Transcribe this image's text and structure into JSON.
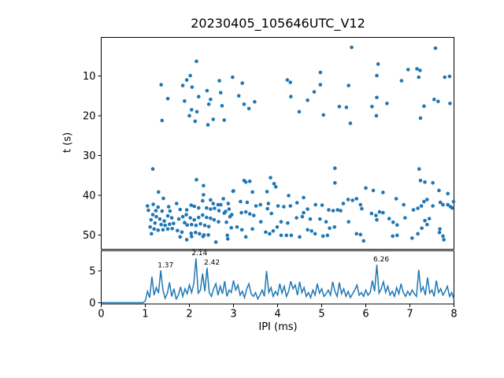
{
  "figure": {
    "title": "20230405_105646UTC_V12",
    "background_color": "#ffffff",
    "accent_color": "#1f77b4",
    "text_color": "#000000"
  },
  "chart_data": [
    {
      "type": "scatter",
      "title": "20230405_105646UTC_V12",
      "xlabel": "",
      "ylabel": "t (s)",
      "xlim": [
        0,
        8
      ],
      "ylim": [
        53.6,
        0.25
      ],
      "y_inverted": true,
      "yticks": [
        10,
        20,
        30,
        40,
        50
      ],
      "grid": false,
      "marker_color": "#1f77b4",
      "points": [
        [
          2.16,
          6.3
        ],
        [
          5.68,
          2.8
        ],
        [
          7.58,
          3.0
        ],
        [
          2.02,
          9.9
        ],
        [
          1.94,
          11.0
        ],
        [
          1.85,
          12.4
        ],
        [
          2.06,
          12.8
        ],
        [
          1.36,
          12.2
        ],
        [
          2.68,
          11.2
        ],
        [
          2.98,
          10.3
        ],
        [
          3.2,
          11.8
        ],
        [
          2.4,
          13.7
        ],
        [
          2.71,
          14.2
        ],
        [
          2.21,
          15.2
        ],
        [
          1.89,
          16.3
        ],
        [
          1.51,
          15.7
        ],
        [
          2.48,
          15.9
        ],
        [
          2.44,
          17.1
        ],
        [
          2.74,
          17.5
        ],
        [
          3.12,
          15.0
        ],
        [
          3.24,
          17.1
        ],
        [
          3.35,
          18.2
        ],
        [
          3.48,
          16.5
        ],
        [
          2.05,
          18.5
        ],
        [
          2.17,
          19.0
        ],
        [
          2.0,
          20.0
        ],
        [
          2.13,
          21.4
        ],
        [
          2.42,
          22.3
        ],
        [
          2.54,
          20.9
        ],
        [
          2.79,
          21.1
        ],
        [
          1.38,
          21.2
        ],
        [
          6.28,
          7.0
        ],
        [
          4.97,
          9.1
        ],
        [
          6.96,
          8.4
        ],
        [
          7.16,
          8.2
        ],
        [
          7.23,
          8.6
        ],
        [
          7.2,
          10.3
        ],
        [
          6.25,
          9.9
        ],
        [
          4.22,
          11.0
        ],
        [
          4.29,
          11.6
        ],
        [
          7.79,
          10.3
        ],
        [
          7.9,
          10.1
        ],
        [
          4.97,
          12.2
        ],
        [
          6.81,
          11.2
        ],
        [
          5.61,
          12.4
        ],
        [
          4.83,
          14.0
        ],
        [
          4.3,
          15.2
        ],
        [
          4.68,
          16.1
        ],
        [
          6.25,
          15.4
        ],
        [
          6.48,
          16.9
        ],
        [
          6.14,
          17.7
        ],
        [
          4.49,
          19.0
        ],
        [
          5.4,
          17.7
        ],
        [
          5.56,
          17.9
        ],
        [
          5.04,
          19.8
        ],
        [
          6.24,
          20.0
        ],
        [
          5.65,
          21.9
        ],
        [
          7.24,
          20.6
        ],
        [
          7.32,
          17.6
        ],
        [
          7.55,
          15.9
        ],
        [
          7.64,
          16.4
        ],
        [
          7.91,
          16.9
        ],
        [
          1.17,
          33.4
        ],
        [
          5.3,
          33.2
        ],
        [
          7.21,
          33.4
        ],
        [
          5.3,
          36.9
        ],
        [
          2.16,
          36.1
        ],
        [
          2.32,
          37.6
        ],
        [
          3.24,
          36.3
        ],
        [
          3.37,
          36.5
        ],
        [
          3.84,
          35.6
        ],
        [
          3.92,
          37.1
        ],
        [
          3.28,
          36.7
        ],
        [
          1.05,
          42.7
        ],
        [
          1.07,
          43.8
        ],
        [
          1.11,
          48.0
        ],
        [
          1.13,
          46.2
        ],
        [
          1.14,
          49.7
        ],
        [
          1.17,
          44.9
        ],
        [
          1.18,
          42.3
        ],
        [
          1.2,
          48.5
        ],
        [
          1.22,
          47.0
        ],
        [
          1.24,
          43.9
        ],
        [
          1.25,
          45.4
        ],
        [
          1.29,
          48.8
        ],
        [
          1.29,
          43.0
        ],
        [
          1.3,
          39.2
        ],
        [
          1.33,
          46.0
        ],
        [
          1.36,
          47.4
        ],
        [
          1.38,
          44.0
        ],
        [
          1.4,
          48.7
        ],
        [
          1.41,
          40.8
        ],
        [
          1.43,
          46.5
        ],
        [
          1.45,
          47.6
        ],
        [
          1.51,
          45.2
        ],
        [
          1.51,
          48.5
        ],
        [
          1.53,
          42.9
        ],
        [
          1.55,
          47.3
        ],
        [
          1.56,
          44.0
        ],
        [
          1.6,
          45.7
        ],
        [
          1.61,
          48.4
        ],
        [
          1.64,
          47.1
        ],
        [
          1.71,
          42.1
        ],
        [
          1.73,
          48.9
        ],
        [
          1.76,
          46.0
        ],
        [
          1.79,
          50.5
        ],
        [
          1.79,
          43.6
        ],
        [
          1.83,
          49.3
        ],
        [
          1.85,
          45.4
        ],
        [
          1.89,
          46.9
        ],
        [
          1.93,
          44.9
        ],
        [
          1.94,
          51.2
        ],
        [
          1.94,
          43.7
        ],
        [
          1.95,
          47.5
        ],
        [
          2.02,
          45.7
        ],
        [
          2.04,
          42.5
        ],
        [
          2.04,
          49.6
        ],
        [
          2.05,
          50.4
        ],
        [
          2.05,
          47.4
        ],
        [
          2.11,
          42.8
        ],
        [
          2.11,
          46.2
        ],
        [
          2.14,
          49.4
        ],
        [
          2.15,
          47.6
        ],
        [
          2.21,
          43.2
        ],
        [
          2.21,
          45.6
        ],
        [
          2.23,
          49.7
        ],
        [
          2.25,
          47.2
        ],
        [
          2.3,
          41.4
        ],
        [
          2.3,
          45.0
        ],
        [
          2.31,
          50.4
        ],
        [
          2.32,
          39.9
        ],
        [
          2.33,
          50.0
        ],
        [
          2.35,
          47.6
        ],
        [
          2.39,
          43.2
        ],
        [
          2.39,
          45.6
        ],
        [
          2.43,
          50.0
        ],
        [
          2.44,
          47.9
        ],
        [
          2.48,
          41.2
        ],
        [
          2.48,
          43.5
        ],
        [
          2.48,
          45.8
        ],
        [
          2.54,
          42.1
        ],
        [
          2.56,
          46.2
        ],
        [
          2.57,
          43.3
        ],
        [
          2.6,
          51.8
        ],
        [
          2.65,
          42.4
        ],
        [
          2.66,
          46.7
        ],
        [
          2.67,
          43.9
        ],
        [
          2.87,
          51.0
        ],
        [
          2.79,
          44.5
        ],
        [
          2.84,
          46.8
        ],
        [
          2.9,
          43.5
        ],
        [
          2.95,
          48.2
        ],
        [
          2.99,
          39.0
        ],
        [
          2.96,
          44.9
        ],
        [
          3.0,
          38.9
        ],
        [
          3.43,
          39.2
        ],
        [
          3.76,
          39.1
        ],
        [
          3.96,
          37.9
        ],
        [
          4.25,
          40.1
        ],
        [
          4.59,
          40.6
        ],
        [
          2.77,
          40.9
        ],
        [
          2.88,
          42.1
        ],
        [
          2.71,
          42.4
        ],
        [
          3.16,
          41.6
        ],
        [
          3.31,
          41.8
        ],
        [
          3.51,
          42.7
        ],
        [
          3.61,
          42.4
        ],
        [
          3.79,
          42.1
        ],
        [
          3.77,
          43.4
        ],
        [
          4.01,
          42.7
        ],
        [
          4.14,
          42.9
        ],
        [
          4.29,
          42.7
        ],
        [
          4.44,
          41.9
        ],
        [
          4.68,
          43.5
        ],
        [
          4.86,
          42.4
        ],
        [
          5.01,
          42.5
        ],
        [
          5.16,
          43.7
        ],
        [
          5.26,
          43.9
        ],
        [
          5.36,
          43.7
        ],
        [
          2.82,
          44.1
        ],
        [
          2.92,
          45.4
        ],
        [
          3.18,
          44.4
        ],
        [
          3.28,
          44.2
        ],
        [
          3.37,
          44.7
        ],
        [
          3.46,
          45.1
        ],
        [
          3.62,
          46.7
        ],
        [
          3.86,
          44.6
        ],
        [
          4.08,
          46.7
        ],
        [
          4.23,
          47.0
        ],
        [
          4.43,
          45.7
        ],
        [
          4.56,
          45.4
        ],
        [
          4.59,
          44.4
        ],
        [
          4.74,
          46.0
        ],
        [
          4.96,
          46.0
        ],
        [
          5.1,
          46.7
        ],
        [
          5.18,
          48.3
        ],
        [
          5.29,
          48.0
        ],
        [
          3.08,
          48.0
        ],
        [
          3.19,
          48.7
        ],
        [
          3.43,
          48.5
        ],
        [
          3.73,
          49.3
        ],
        [
          3.82,
          49.7
        ],
        [
          3.9,
          49.0
        ],
        [
          3.99,
          48.0
        ],
        [
          4.08,
          50.1
        ],
        [
          4.2,
          50.1
        ],
        [
          4.31,
          50.1
        ],
        [
          4.5,
          50.5
        ],
        [
          4.68,
          48.7
        ],
        [
          4.77,
          49.0
        ],
        [
          4.85,
          49.7
        ],
        [
          5.03,
          50.3
        ],
        [
          5.13,
          50.1
        ],
        [
          2.86,
          50.1
        ],
        [
          3.28,
          50.5
        ],
        [
          6.0,
          38.2
        ],
        [
          6.17,
          38.8
        ],
        [
          6.39,
          39.3
        ],
        [
          7.66,
          38.8
        ],
        [
          7.86,
          39.6
        ],
        [
          5.49,
          42.1
        ],
        [
          5.6,
          41.1
        ],
        [
          5.7,
          41.3
        ],
        [
          5.79,
          40.9
        ],
        [
          5.88,
          42.4
        ],
        [
          5.91,
          43.4
        ],
        [
          5.43,
          43.9
        ],
        [
          6.69,
          40.9
        ],
        [
          6.86,
          42.4
        ],
        [
          7.08,
          43.7
        ],
        [
          7.18,
          43.3
        ],
        [
          7.26,
          42.7
        ],
        [
          7.32,
          41.6
        ],
        [
          7.39,
          41.1
        ],
        [
          7.52,
          42.7
        ],
        [
          7.69,
          41.8
        ],
        [
          7.75,
          42.4
        ],
        [
          7.86,
          42.4
        ],
        [
          7.92,
          42.9
        ],
        [
          6.13,
          44.6
        ],
        [
          6.23,
          45.1
        ],
        [
          6.31,
          44.2
        ],
        [
          6.39,
          44.4
        ],
        [
          6.25,
          46.2
        ],
        [
          6.53,
          45.9
        ],
        [
          6.62,
          46.8
        ],
        [
          6.71,
          47.5
        ],
        [
          6.89,
          45.7
        ],
        [
          7.34,
          46.4
        ],
        [
          7.44,
          45.9
        ],
        [
          7.39,
          47.4
        ],
        [
          7.27,
          48.3
        ],
        [
          7.68,
          48.5
        ],
        [
          5.79,
          49.7
        ],
        [
          5.88,
          49.9
        ],
        [
          6.61,
          50.3
        ],
        [
          6.71,
          50.1
        ],
        [
          7.05,
          50.8
        ],
        [
          7.18,
          49.7
        ],
        [
          7.75,
          50.3
        ],
        [
          5.61,
          46.7
        ],
        [
          7.67,
          49.4
        ],
        [
          7.77,
          51.2
        ],
        [
          7.96,
          43.2
        ],
        [
          7.99,
          41.6
        ],
        [
          5.95,
          51.5
        ],
        [
          7.24,
          36.3
        ],
        [
          7.34,
          36.7
        ],
        [
          7.52,
          36.9
        ]
      ]
    },
    {
      "type": "line",
      "xlabel": "IPI (ms)",
      "ylabel": "",
      "xlim": [
        0,
        8
      ],
      "ylim": [
        -0.2,
        8.2
      ],
      "xticks": [
        0,
        1,
        2,
        3,
        4,
        5,
        6,
        7,
        8
      ],
      "yticks": [
        0,
        5
      ],
      "grid": false,
      "line_color": "#1f77b4",
      "x_start": 0,
      "dx": 0.05,
      "values": [
        0,
        0,
        0,
        0,
        0,
        0,
        0,
        0,
        0,
        0,
        0,
        0,
        0,
        0,
        0,
        0,
        0,
        0,
        0,
        0,
        0.3,
        1.8,
        0.8,
        4.1,
        1.2,
        2.4,
        1.5,
        5.1,
        2.0,
        0.7,
        1.5,
        3.2,
        1.0,
        2.2,
        0.6,
        1.2,
        2.5,
        1.0,
        2.2,
        1.4,
        2.8,
        1.6,
        3.0,
        7.0,
        1.5,
        2.0,
        4.6,
        1.8,
        5.5,
        1.6,
        1.0,
        2.2,
        3.0,
        1.2,
        2.6,
        1.4,
        3.4,
        1.0,
        2.0,
        1.6,
        3.5,
        2.0,
        2.8,
        1.2,
        1.8,
        0.8,
        2.2,
        3.0,
        1.4,
        1.0,
        1.6,
        0.6,
        1.2,
        2.0,
        1.0,
        5.0,
        1.6,
        2.4,
        1.0,
        1.8,
        1.2,
        3.0,
        1.5,
        2.6,
        1.0,
        1.8,
        3.4,
        2.2,
        2.8,
        1.2,
        3.3,
        1.6,
        2.4,
        1.0,
        1.6,
        0.8,
        2.0,
        1.2,
        3.0,
        1.5,
        2.2,
        1.0,
        1.4,
        2.0,
        1.2,
        3.3,
        1.8,
        1.0,
        3.2,
        1.4,
        2.2,
        1.0,
        1.8,
        0.8,
        1.4,
        2.0,
        2.8,
        1.2,
        1.6,
        1.0,
        2.0,
        1.2,
        1.6,
        3.5,
        1.8,
        6.0,
        1.5,
        2.2,
        3.3,
        1.6,
        2.6,
        1.2,
        1.8,
        1.0,
        2.4,
        1.4,
        3.0,
        1.6,
        1.0,
        1.8,
        1.2,
        2.0,
        1.4,
        1.0,
        5.2,
        1.8,
        2.5,
        1.2,
        4.0,
        1.5,
        2.0,
        1.0,
        3.5,
        1.6,
        2.2,
        1.2,
        1.8,
        2.6,
        1.0,
        1.6,
        0.5
      ],
      "annotations": [
        {
          "x": 1.37,
          "y": 5.1,
          "label": "1.37"
        },
        {
          "x": 2.14,
          "y": 7.0,
          "label": "2.14"
        },
        {
          "x": 2.42,
          "y": 5.5,
          "label": "2.42"
        },
        {
          "x": 6.26,
          "y": 6.0,
          "label": "6.26"
        }
      ]
    }
  ]
}
